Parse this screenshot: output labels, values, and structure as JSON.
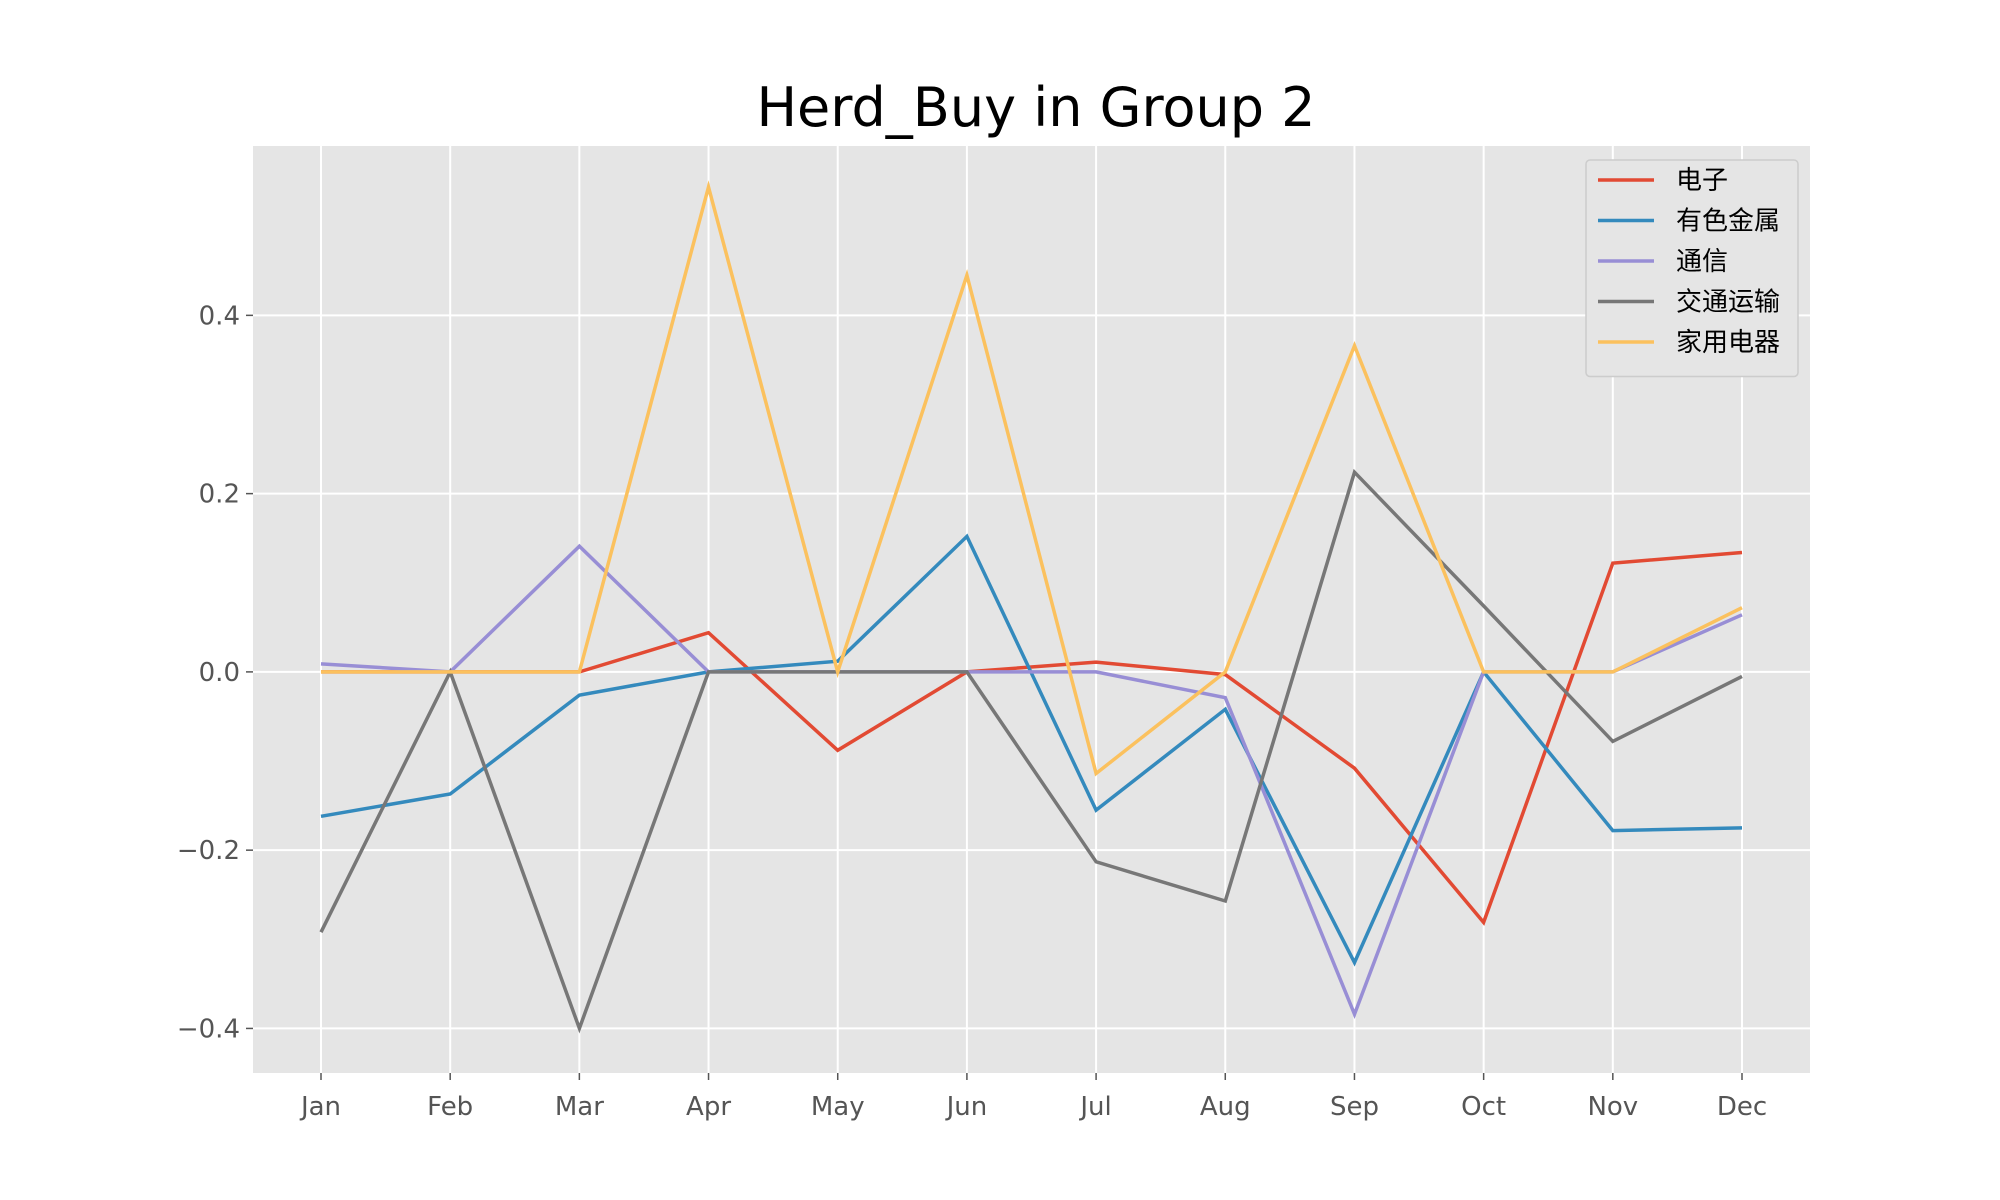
{
  "chart_data": {
    "type": "line",
    "title": "Herd_Buy in Group 2",
    "xlabel": "",
    "ylabel": "",
    "x": [
      "Jan",
      "Feb",
      "Mar",
      "Apr",
      "May",
      "Jun",
      "Jul",
      "Aug",
      "Sep",
      "Oct",
      "Nov",
      "Dec"
    ],
    "ylim": [
      -0.45,
      0.59
    ],
    "yticks": [
      -0.4,
      -0.2,
      0.0,
      0.2,
      0.4
    ],
    "ytick_labels": [
      "−0.4",
      "−0.2",
      "0.0",
      "0.2",
      "0.4"
    ],
    "grid": true,
    "legend_position": "top-right",
    "series": [
      {
        "name": "电子",
        "color": "#E24A33",
        "values": [
          0.0,
          0.0,
          0.0,
          0.044,
          -0.088,
          0.0,
          0.011,
          -0.003,
          -0.108,
          -0.281,
          0.122,
          0.134
        ]
      },
      {
        "name": "有色金属",
        "color": "#348ABD",
        "values": [
          -0.162,
          -0.137,
          -0.026,
          0.0,
          0.012,
          0.152,
          -0.155,
          -0.042,
          -0.326,
          0.0,
          -0.178,
          -0.175
        ]
      },
      {
        "name": "通信",
        "color": "#988ED5",
        "values": [
          0.009,
          0.0,
          0.141,
          0.0,
          0.0,
          0.0,
          0.0,
          -0.029,
          -0.384,
          0.0,
          0.0,
          0.064
        ]
      },
      {
        "name": "交通运输",
        "color": "#777777",
        "values": [
          -0.292,
          0.0,
          -0.4,
          0.0,
          0.0,
          0.0,
          -0.213,
          -0.257,
          0.224,
          0.074,
          -0.078,
          -0.005
        ]
      },
      {
        "name": "家用电器",
        "color": "#FBC15E",
        "values": [
          0.0,
          0.0,
          0.0,
          0.544,
          0.0,
          0.445,
          -0.114,
          0.0,
          0.366,
          0.0,
          0.0,
          0.072
        ]
      }
    ]
  }
}
